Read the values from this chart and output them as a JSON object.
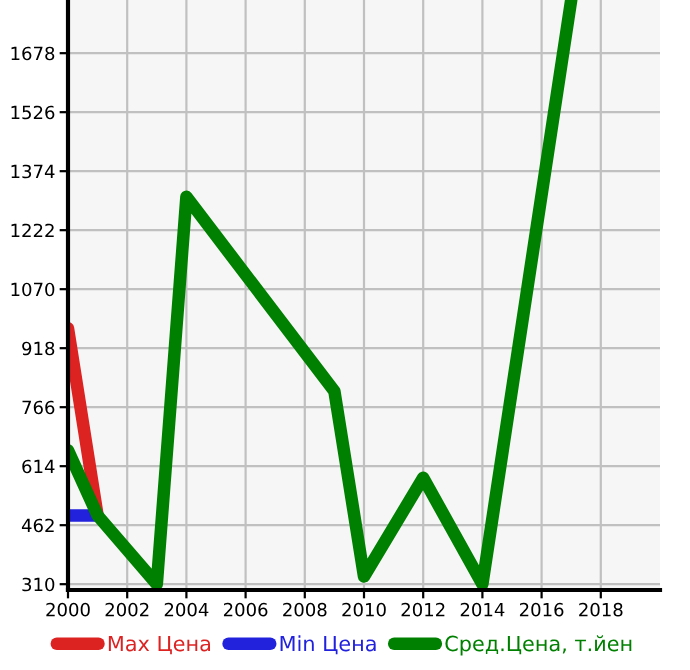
{
  "chart_data": {
    "type": "line",
    "xlim": [
      2000,
      2020
    ],
    "xticks": [
      2000,
      2002,
      2004,
      2006,
      2008,
      2010,
      2012,
      2014,
      2016,
      2018
    ],
    "ylim": [
      295,
      1815
    ],
    "yticks": [
      310,
      462,
      614,
      766,
      918,
      1070,
      1222,
      1374,
      1526,
      1678
    ],
    "grid": true,
    "legend": "bottom",
    "marker": "none",
    "line_style": "solid",
    "series": [
      {
        "name": "Max Цена",
        "color": "#dd2222",
        "x": [
          2000,
          2001
        ],
        "values": [
          969,
          487
        ]
      },
      {
        "name": "Min Цена",
        "color": "#2222dd",
        "x": [
          2000,
          2001
        ],
        "values": [
          487,
          487
        ]
      },
      {
        "name": "Сред.Цена, т.йен",
        "color": "#008000",
        "x": [
          2000,
          2001,
          2003,
          2004,
          2009,
          2010,
          2012,
          2014,
          2017
        ],
        "values": [
          655,
          487,
          310,
          1308,
          807,
          330,
          584,
          310,
          1815
        ]
      }
    ]
  }
}
